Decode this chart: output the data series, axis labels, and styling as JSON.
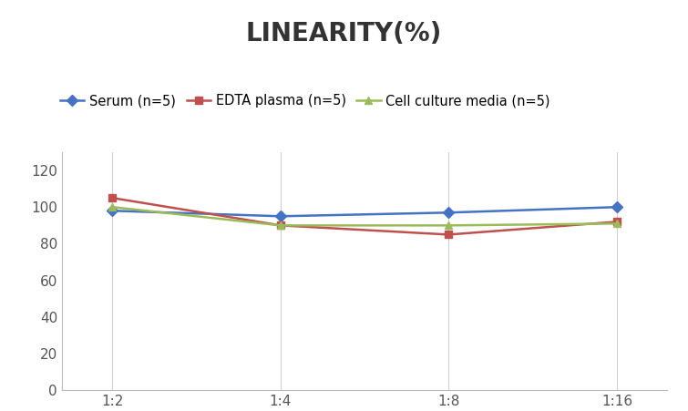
{
  "title": "LINEARITY(%)",
  "title_fontsize": 20,
  "title_fontweight": "bold",
  "x_labels": [
    "1:2",
    "1:4",
    "1:8",
    "1:16"
  ],
  "x_positions": [
    0,
    1,
    2,
    3
  ],
  "serum": {
    "label": "Serum (n=5)",
    "values": [
      98,
      95,
      97,
      100
    ],
    "color": "#4472C4",
    "marker": "D",
    "markersize": 6
  },
  "edta": {
    "label": "EDTA plasma (n=5)",
    "values": [
      105,
      90,
      85,
      92
    ],
    "color": "#C0504D",
    "marker": "s",
    "markersize": 6
  },
  "cell": {
    "label": "Cell culture media (n=5)",
    "values": [
      100,
      90,
      90,
      91
    ],
    "color": "#9BBB59",
    "marker": "^",
    "markersize": 6
  },
  "ylim": [
    0,
    130
  ],
  "yticks": [
    0,
    20,
    40,
    60,
    80,
    100,
    120
  ],
  "background_color": "#ffffff",
  "grid_color": "#d0d0d0",
  "legend_fontsize": 10.5,
  "axis_fontsize": 11,
  "tick_color": "#555555"
}
